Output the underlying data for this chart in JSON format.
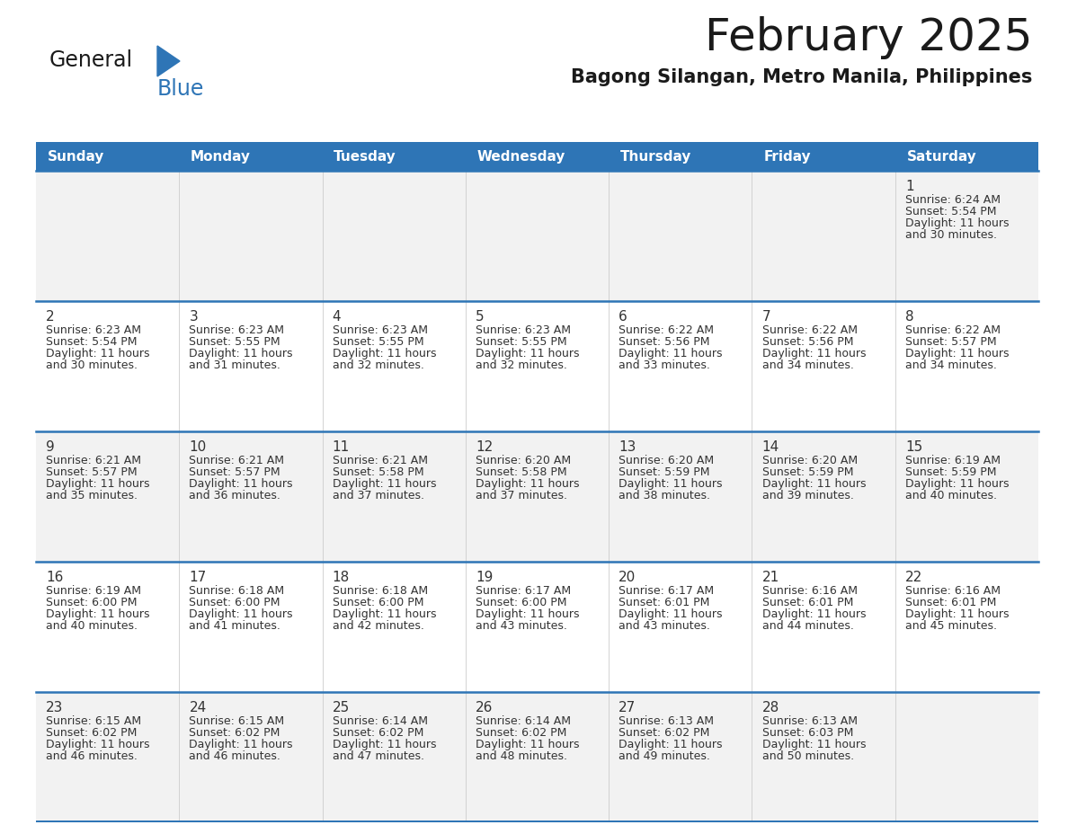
{
  "title": "February 2025",
  "subtitle": "Bagong Silangan, Metro Manila, Philippines",
  "header_bg": "#2E75B6",
  "header_text_color": "#FFFFFF",
  "row_bg_odd": "#F2F2F2",
  "row_bg_even": "#FFFFFF",
  "separator_color": "#2E75B6",
  "day_headers": [
    "Sunday",
    "Monday",
    "Tuesday",
    "Wednesday",
    "Thursday",
    "Friday",
    "Saturday"
  ],
  "calendar_data": [
    [
      null,
      null,
      null,
      null,
      null,
      null,
      {
        "day": "1",
        "sunrise": "6:24 AM",
        "sunset": "5:54 PM",
        "daylight1": "11 hours",
        "daylight2": "and 30 minutes."
      }
    ],
    [
      {
        "day": "2",
        "sunrise": "6:23 AM",
        "sunset": "5:54 PM",
        "daylight1": "11 hours",
        "daylight2": "and 30 minutes."
      },
      {
        "day": "3",
        "sunrise": "6:23 AM",
        "sunset": "5:55 PM",
        "daylight1": "11 hours",
        "daylight2": "and 31 minutes."
      },
      {
        "day": "4",
        "sunrise": "6:23 AM",
        "sunset": "5:55 PM",
        "daylight1": "11 hours",
        "daylight2": "and 32 minutes."
      },
      {
        "day": "5",
        "sunrise": "6:23 AM",
        "sunset": "5:55 PM",
        "daylight1": "11 hours",
        "daylight2": "and 32 minutes."
      },
      {
        "day": "6",
        "sunrise": "6:22 AM",
        "sunset": "5:56 PM",
        "daylight1": "11 hours",
        "daylight2": "and 33 minutes."
      },
      {
        "day": "7",
        "sunrise": "6:22 AM",
        "sunset": "5:56 PM",
        "daylight1": "11 hours",
        "daylight2": "and 34 minutes."
      },
      {
        "day": "8",
        "sunrise": "6:22 AM",
        "sunset": "5:57 PM",
        "daylight1": "11 hours",
        "daylight2": "and 34 minutes."
      }
    ],
    [
      {
        "day": "9",
        "sunrise": "6:21 AM",
        "sunset": "5:57 PM",
        "daylight1": "11 hours",
        "daylight2": "and 35 minutes."
      },
      {
        "day": "10",
        "sunrise": "6:21 AM",
        "sunset": "5:57 PM",
        "daylight1": "11 hours",
        "daylight2": "and 36 minutes."
      },
      {
        "day": "11",
        "sunrise": "6:21 AM",
        "sunset": "5:58 PM",
        "daylight1": "11 hours",
        "daylight2": "and 37 minutes."
      },
      {
        "day": "12",
        "sunrise": "6:20 AM",
        "sunset": "5:58 PM",
        "daylight1": "11 hours",
        "daylight2": "and 37 minutes."
      },
      {
        "day": "13",
        "sunrise": "6:20 AM",
        "sunset": "5:59 PM",
        "daylight1": "11 hours",
        "daylight2": "and 38 minutes."
      },
      {
        "day": "14",
        "sunrise": "6:20 AM",
        "sunset": "5:59 PM",
        "daylight1": "11 hours",
        "daylight2": "and 39 minutes."
      },
      {
        "day": "15",
        "sunrise": "6:19 AM",
        "sunset": "5:59 PM",
        "daylight1": "11 hours",
        "daylight2": "and 40 minutes."
      }
    ],
    [
      {
        "day": "16",
        "sunrise": "6:19 AM",
        "sunset": "6:00 PM",
        "daylight1": "11 hours",
        "daylight2": "and 40 minutes."
      },
      {
        "day": "17",
        "sunrise": "6:18 AM",
        "sunset": "6:00 PM",
        "daylight1": "11 hours",
        "daylight2": "and 41 minutes."
      },
      {
        "day": "18",
        "sunrise": "6:18 AM",
        "sunset": "6:00 PM",
        "daylight1": "11 hours",
        "daylight2": "and 42 minutes."
      },
      {
        "day": "19",
        "sunrise": "6:17 AM",
        "sunset": "6:00 PM",
        "daylight1": "11 hours",
        "daylight2": "and 43 minutes."
      },
      {
        "day": "20",
        "sunrise": "6:17 AM",
        "sunset": "6:01 PM",
        "daylight1": "11 hours",
        "daylight2": "and 43 minutes."
      },
      {
        "day": "21",
        "sunrise": "6:16 AM",
        "sunset": "6:01 PM",
        "daylight1": "11 hours",
        "daylight2": "and 44 minutes."
      },
      {
        "day": "22",
        "sunrise": "6:16 AM",
        "sunset": "6:01 PM",
        "daylight1": "11 hours",
        "daylight2": "and 45 minutes."
      }
    ],
    [
      {
        "day": "23",
        "sunrise": "6:15 AM",
        "sunset": "6:02 PM",
        "daylight1": "11 hours",
        "daylight2": "and 46 minutes."
      },
      {
        "day": "24",
        "sunrise": "6:15 AM",
        "sunset": "6:02 PM",
        "daylight1": "11 hours",
        "daylight2": "and 46 minutes."
      },
      {
        "day": "25",
        "sunrise": "6:14 AM",
        "sunset": "6:02 PM",
        "daylight1": "11 hours",
        "daylight2": "and 47 minutes."
      },
      {
        "day": "26",
        "sunrise": "6:14 AM",
        "sunset": "6:02 PM",
        "daylight1": "11 hours",
        "daylight2": "and 48 minutes."
      },
      {
        "day": "27",
        "sunrise": "6:13 AM",
        "sunset": "6:02 PM",
        "daylight1": "11 hours",
        "daylight2": "and 49 minutes."
      },
      {
        "day": "28",
        "sunrise": "6:13 AM",
        "sunset": "6:03 PM",
        "daylight1": "11 hours",
        "daylight2": "and 50 minutes."
      },
      null
    ]
  ],
  "fig_width": 11.88,
  "fig_height": 9.18,
  "dpi": 100
}
